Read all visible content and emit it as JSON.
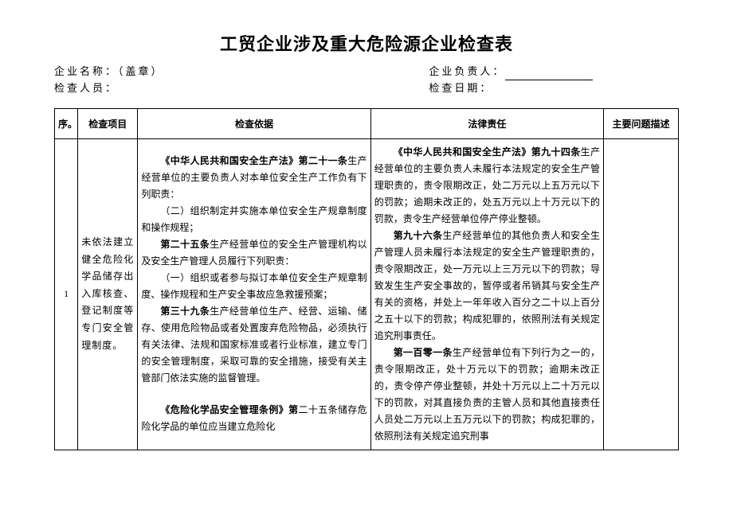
{
  "title": "工贸企业涉及重大危险源企业检查表",
  "header": {
    "company_label": "企业名称：（盖章）",
    "inspector_label": "检查人员：",
    "responsible_label": "企业负责人：",
    "date_label": "检查日期："
  },
  "columns": {
    "seq": "序。",
    "item": "检查项目",
    "basis": "检查依据",
    "liability": "法律责任",
    "desc": "主要问题描述"
  },
  "row": {
    "seq": "1",
    "item": "未依法建立健全危险化学品储存出入库核查、登记制度等专门安全管理制度。",
    "basis": {
      "p1a": "《中华人民共和国安全生产法》第二十一条",
      "p1b": "生产经营单位的主要负责人对本单位安全生产工作负有下列职责：",
      "p2": "（二）组织制定并实施本单位安全生产规章制度和操作规程；",
      "p3a": "第二十五条",
      "p3b": "生产经营单位的安全生产管理机构以及安全生产管理人员履行下列职责：",
      "p4": "（一）组织或者参与拟订本单位安全生产规章制度、操作规程和生产安全事故应急救援预案；",
      "p5a": "第三十九条",
      "p5b": "生产经营单位生产、经营、运输、储存、使用危险物品或者处置废弃危险物品，必须执行有关法律、法规和国家标准或者行业标准，建立专门的安全管理制度，采取可靠的安全措施，接受有关主管部门依法实施的监督管理。",
      "p6a": "《危险化学品安全管理条例》第",
      "p6b": "二十五条储存危险化学品的单位应当建立危险化"
    },
    "liability": {
      "p1a": "《中华人民共和国安全生产法》第九十四条",
      "p1b": "生产经营单位的主要负责人未履行本法规定的安全生产管理职责的，责令限期改正，处二万元以上五万元以下的罚款；逾期未改正的，处五万元以上十万元以下的罚款，责令生产经营单位停产停业整顿。",
      "p2a": "第九十六条",
      "p2b": "生产经营单位的其他负责人和安全生产管理人员未履行本法规定的安全生产管理职责的，责令限期改正，处一万元以上三万元以下的罚款；导致发生生产安全事故的，暂停或者吊销其与安全生产有关的资格，并处上一年年收入百分之二十以上百分之五十以下的罚款；构成犯罪的，依照刑法有关规定追究刑事责任。",
      "p3a": "第一百零一条",
      "p3b": "生产经营单位有下列行为之一的，责令限期改正，处十万元以下的罚款；逾期未改正的，责令停产停业整顿，并处十万元以上二十万元以下的罚款，对其直接负责的主管人员和其他直接责任人员处二万元以上五万元以下的罚款；构成犯罪的，依照刑法有关规定追究刑事"
    }
  }
}
